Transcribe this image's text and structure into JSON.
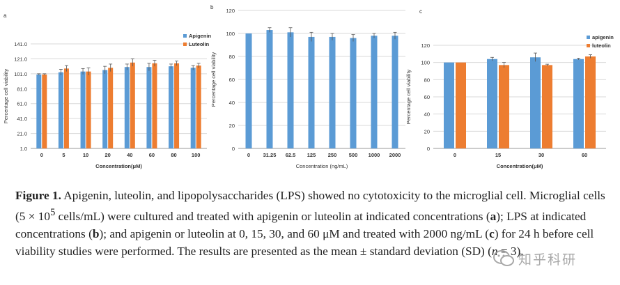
{
  "chart_data": [
    {
      "panel_label": "a",
      "type": "bar",
      "xlabel": "Concentration(μM)",
      "ylabel": "Percentage cell viability",
      "categories": [
        "0",
        "5",
        "10",
        "20",
        "40",
        "60",
        "80",
        "100"
      ],
      "y_ticks": [
        "1.0",
        "21.0",
        "41.0",
        "61.0",
        "81.0",
        "101.0",
        "121.0",
        "141.0"
      ],
      "ylim": [
        1,
        141
      ],
      "legend_position": "top-right",
      "series": [
        {
          "name": "Apigenin",
          "color": "#5b9bd5",
          "values": [
            100,
            103,
            104,
            106,
            110,
            110,
            111,
            109
          ],
          "errors": [
            1,
            4,
            4,
            5,
            4,
            5,
            3,
            3
          ]
        },
        {
          "name": "Luteolin",
          "color": "#ed7d31",
          "values": [
            100,
            108,
            104,
            109,
            116,
            115,
            115,
            112
          ],
          "errors": [
            1,
            4,
            5,
            5,
            5,
            4,
            3,
            3
          ]
        }
      ]
    },
    {
      "panel_label": "b",
      "type": "bar",
      "xlabel": "Concentration (ng/mL)",
      "ylabel": "Percentage cell viability",
      "categories": [
        "0",
        "31.25",
        "62.5",
        "125",
        "250",
        "500",
        "1000",
        "2000"
      ],
      "y_ticks": [
        "0",
        "20",
        "40",
        "60",
        "80",
        "100",
        "120"
      ],
      "ylim": [
        0,
        120
      ],
      "legend_position": "none",
      "series": [
        {
          "name": "LPS",
          "color": "#5b9bd5",
          "values": [
            100,
            103,
            101,
            97,
            97,
            96,
            98,
            98
          ],
          "errors": [
            0,
            2,
            4,
            4,
            3,
            3,
            2,
            3
          ]
        }
      ]
    },
    {
      "panel_label": "c",
      "type": "bar",
      "xlabel": "Concentration(μM)",
      "ylabel": "Percentage cell viability",
      "categories": [
        "0",
        "15",
        "30",
        "60"
      ],
      "y_ticks": [
        "0",
        "20",
        "40",
        "60",
        "80",
        "100",
        "120"
      ],
      "ylim": [
        0,
        120
      ],
      "legend_position": "top-right",
      "series": [
        {
          "name": "apigenin",
          "color": "#5b9bd5",
          "values": [
            100,
            104,
            106,
            104
          ],
          "errors": [
            0,
            2,
            5,
            1
          ]
        },
        {
          "name": "luteolin",
          "color": "#ed7d31",
          "values": [
            100,
            97,
            97,
            107
          ],
          "errors": [
            0,
            3,
            1,
            2
          ]
        }
      ]
    }
  ],
  "caption": {
    "label": "Figure 1.",
    "text_1": " Apigenin, luteolin, and lipopolysaccharides (LPS) showed no cytotoxicity to the microglial cell. Microglial cells (5 × 10",
    "superscript": "5",
    "text_2": " cells/mL) were cultured and treated with apigenin or luteolin at indicated concentrations (",
    "ref_a": "a",
    "text_3": "); LPS at indicated concentrations (",
    "ref_b": "b",
    "text_4": "); and apigenin or luteolin at 0, 15, 30, and 60 μM and treated with 2000 ng/mL (",
    "ref_c": "c",
    "text_5": ") for 24 h before cell viability studies were performed. The results are presented as the mean ± standard deviation (SD) (",
    "n_symbol": "n",
    "text_6": " = 3)."
  },
  "watermark": {
    "text": "知乎科研"
  }
}
